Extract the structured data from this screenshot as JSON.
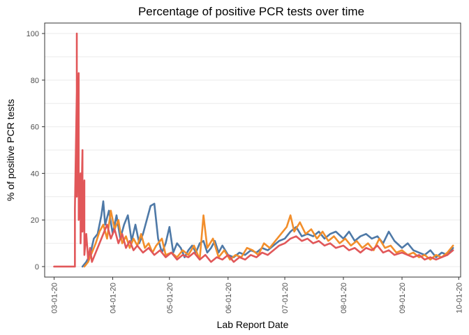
{
  "chart_data": {
    "type": "line",
    "title": "Percentage of positive PCR tests over time",
    "xlabel": "Lab Report Date",
    "ylabel": "% of positive PCR tests",
    "x_ticks": [
      "03-01-20",
      "04-01-20",
      "05-01-20",
      "06-01-20",
      "07-01-20",
      "08-01-20",
      "09-01-20",
      "10-01-20"
    ],
    "y_ticks": [
      0,
      20,
      40,
      60,
      80,
      100
    ],
    "xlim": [
      "2020-02-25",
      "2020-10-02"
    ],
    "ylim": [
      -4.5,
      104.5
    ],
    "grid": "horizontal",
    "legend": "none",
    "series": [
      {
        "color": "#4e79a7",
        "points": [
          [
            "2020-03-16",
            0
          ],
          [
            "2020-03-18",
            2
          ],
          [
            "2020-03-20",
            5
          ],
          [
            "2020-03-22",
            12
          ],
          [
            "2020-03-24",
            14
          ],
          [
            "2020-03-26",
            22
          ],
          [
            "2020-03-27",
            28
          ],
          [
            "2020-03-28",
            18
          ],
          [
            "2020-03-30",
            24
          ],
          [
            "2020-04-01",
            14
          ],
          [
            "2020-04-03",
            22
          ],
          [
            "2020-04-05",
            12
          ],
          [
            "2020-04-07",
            18
          ],
          [
            "2020-04-09",
            22
          ],
          [
            "2020-04-11",
            11
          ],
          [
            "2020-04-13",
            18
          ],
          [
            "2020-04-15",
            10
          ],
          [
            "2020-04-17",
            14
          ],
          [
            "2020-04-19",
            20
          ],
          [
            "2020-04-21",
            26
          ],
          [
            "2020-04-23",
            27
          ],
          [
            "2020-04-25",
            12
          ],
          [
            "2020-04-27",
            6
          ],
          [
            "2020-04-29",
            10
          ],
          [
            "2020-05-01",
            17
          ],
          [
            "2020-05-03",
            6
          ],
          [
            "2020-05-05",
            10
          ],
          [
            "2020-05-07",
            8
          ],
          [
            "2020-05-09",
            4
          ],
          [
            "2020-05-11",
            7
          ],
          [
            "2020-05-13",
            9
          ],
          [
            "2020-05-15",
            6
          ],
          [
            "2020-05-17",
            10
          ],
          [
            "2020-05-19",
            11
          ],
          [
            "2020-05-21",
            6
          ],
          [
            "2020-05-23",
            8
          ],
          [
            "2020-05-25",
            11
          ],
          [
            "2020-05-27",
            6
          ],
          [
            "2020-05-29",
            9
          ],
          [
            "2020-06-01",
            5
          ],
          [
            "2020-06-04",
            4
          ],
          [
            "2020-06-07",
            6
          ],
          [
            "2020-06-10",
            5
          ],
          [
            "2020-06-13",
            7
          ],
          [
            "2020-06-16",
            6
          ],
          [
            "2020-06-19",
            8
          ],
          [
            "2020-06-22",
            7
          ],
          [
            "2020-06-25",
            9
          ],
          [
            "2020-06-28",
            11
          ],
          [
            "2020-07-01",
            12
          ],
          [
            "2020-07-04",
            15
          ],
          [
            "2020-07-07",
            17
          ],
          [
            "2020-07-10",
            13
          ],
          [
            "2020-07-13",
            14
          ],
          [
            "2020-07-16",
            13
          ],
          [
            "2020-07-19",
            15
          ],
          [
            "2020-07-22",
            12
          ],
          [
            "2020-07-25",
            14
          ],
          [
            "2020-07-28",
            15
          ],
          [
            "2020-08-01",
            12
          ],
          [
            "2020-08-04",
            15
          ],
          [
            "2020-08-07",
            11
          ],
          [
            "2020-08-10",
            13
          ],
          [
            "2020-08-13",
            14
          ],
          [
            "2020-08-16",
            12
          ],
          [
            "2020-08-19",
            13
          ],
          [
            "2020-08-22",
            10
          ],
          [
            "2020-08-25",
            15
          ],
          [
            "2020-08-28",
            11
          ],
          [
            "2020-09-01",
            8
          ],
          [
            "2020-09-04",
            10
          ],
          [
            "2020-09-07",
            7
          ],
          [
            "2020-09-10",
            6
          ],
          [
            "2020-09-13",
            5
          ],
          [
            "2020-09-16",
            7
          ],
          [
            "2020-09-19",
            4
          ],
          [
            "2020-09-22",
            6
          ],
          [
            "2020-09-25",
            5
          ],
          [
            "2020-09-28",
            8
          ]
        ]
      },
      {
        "color": "#f28e2b",
        "points": [
          [
            "2020-03-17",
            0
          ],
          [
            "2020-03-19",
            2
          ],
          [
            "2020-03-21",
            6
          ],
          [
            "2020-03-23",
            10
          ],
          [
            "2020-03-25",
            15
          ],
          [
            "2020-03-27",
            18
          ],
          [
            "2020-03-29",
            12
          ],
          [
            "2020-03-31",
            24
          ],
          [
            "2020-04-02",
            16
          ],
          [
            "2020-04-04",
            20
          ],
          [
            "2020-04-06",
            10
          ],
          [
            "2020-04-08",
            13
          ],
          [
            "2020-04-10",
            8
          ],
          [
            "2020-04-12",
            12
          ],
          [
            "2020-04-14",
            9
          ],
          [
            "2020-04-16",
            14
          ],
          [
            "2020-04-18",
            8
          ],
          [
            "2020-04-20",
            10
          ],
          [
            "2020-04-22",
            6
          ],
          [
            "2020-04-24",
            9
          ],
          [
            "2020-04-27",
            12
          ],
          [
            "2020-04-29",
            5
          ],
          [
            "2020-05-02",
            6
          ],
          [
            "2020-05-05",
            4
          ],
          [
            "2020-05-08",
            7
          ],
          [
            "2020-05-11",
            5
          ],
          [
            "2020-05-14",
            9
          ],
          [
            "2020-05-17",
            3
          ],
          [
            "2020-05-19",
            22
          ],
          [
            "2020-05-21",
            8
          ],
          [
            "2020-05-24",
            12
          ],
          [
            "2020-05-27",
            4
          ],
          [
            "2020-05-30",
            7
          ],
          [
            "2020-06-02",
            3
          ],
          [
            "2020-06-05",
            5
          ],
          [
            "2020-06-08",
            4
          ],
          [
            "2020-06-11",
            8
          ],
          [
            "2020-06-14",
            7
          ],
          [
            "2020-06-17",
            5
          ],
          [
            "2020-06-20",
            10
          ],
          [
            "2020-06-23",
            8
          ],
          [
            "2020-06-26",
            11
          ],
          [
            "2020-06-29",
            14
          ],
          [
            "2020-07-02",
            17
          ],
          [
            "2020-07-04",
            22
          ],
          [
            "2020-07-06",
            15
          ],
          [
            "2020-07-09",
            19
          ],
          [
            "2020-07-12",
            14
          ],
          [
            "2020-07-15",
            16
          ],
          [
            "2020-07-18",
            12
          ],
          [
            "2020-07-21",
            15
          ],
          [
            "2020-07-24",
            11
          ],
          [
            "2020-07-27",
            13
          ],
          [
            "2020-07-30",
            10
          ],
          [
            "2020-08-02",
            12
          ],
          [
            "2020-08-05",
            9
          ],
          [
            "2020-08-08",
            11
          ],
          [
            "2020-08-11",
            8
          ],
          [
            "2020-08-14",
            10
          ],
          [
            "2020-08-17",
            7
          ],
          [
            "2020-08-20",
            12
          ],
          [
            "2020-08-23",
            8
          ],
          [
            "2020-08-26",
            9
          ],
          [
            "2020-08-29",
            6
          ],
          [
            "2020-09-01",
            7
          ],
          [
            "2020-09-04",
            5
          ],
          [
            "2020-09-07",
            6
          ],
          [
            "2020-09-10",
            4
          ],
          [
            "2020-09-13",
            5
          ],
          [
            "2020-09-16",
            3
          ],
          [
            "2020-09-19",
            5
          ],
          [
            "2020-09-22",
            4
          ],
          [
            "2020-09-25",
            6
          ],
          [
            "2020-09-28",
            9
          ]
        ]
      },
      {
        "color": "#e15759",
        "points": [
          [
            "2020-03-01",
            0
          ],
          [
            "2020-03-05",
            0
          ],
          [
            "2020-03-09",
            0
          ],
          [
            "2020-03-12",
            0
          ],
          [
            "2020-03-12",
            25
          ],
          [
            "2020-03-13",
            75
          ],
          [
            "2020-03-13",
            100
          ],
          [
            "2020-03-13",
            30
          ],
          [
            "2020-03-14",
            83
          ],
          [
            "2020-03-14",
            20
          ],
          [
            "2020-03-15",
            40
          ],
          [
            "2020-03-15",
            10
          ],
          [
            "2020-03-16",
            50
          ],
          [
            "2020-03-16",
            15
          ],
          [
            "2020-03-17",
            37
          ],
          [
            "2020-03-17",
            5
          ],
          [
            "2020-03-18",
            14
          ],
          [
            "2020-03-19",
            3
          ],
          [
            "2020-03-20",
            8
          ],
          [
            "2020-03-21",
            2
          ],
          [
            "2020-03-23",
            6
          ],
          [
            "2020-03-25",
            10
          ],
          [
            "2020-03-27",
            14
          ],
          [
            "2020-03-29",
            18
          ],
          [
            "2020-03-31",
            12
          ],
          [
            "2020-04-02",
            16
          ],
          [
            "2020-04-04",
            10
          ],
          [
            "2020-04-06",
            14
          ],
          [
            "2020-04-08",
            8
          ],
          [
            "2020-04-10",
            11
          ],
          [
            "2020-04-12",
            7
          ],
          [
            "2020-04-14",
            9
          ],
          [
            "2020-04-17",
            6
          ],
          [
            "2020-04-20",
            8
          ],
          [
            "2020-04-23",
            5
          ],
          [
            "2020-04-26",
            7
          ],
          [
            "2020-04-29",
            4
          ],
          [
            "2020-05-02",
            6
          ],
          [
            "2020-05-05",
            3
          ],
          [
            "2020-05-08",
            5
          ],
          [
            "2020-05-11",
            4
          ],
          [
            "2020-05-14",
            6
          ],
          [
            "2020-05-17",
            3
          ],
          [
            "2020-05-20",
            5
          ],
          [
            "2020-05-23",
            2
          ],
          [
            "2020-05-26",
            4
          ],
          [
            "2020-05-29",
            3
          ],
          [
            "2020-06-01",
            5
          ],
          [
            "2020-06-04",
            2
          ],
          [
            "2020-06-07",
            4
          ],
          [
            "2020-06-10",
            3
          ],
          [
            "2020-06-13",
            5
          ],
          [
            "2020-06-16",
            4
          ],
          [
            "2020-06-19",
            6
          ],
          [
            "2020-06-22",
            5
          ],
          [
            "2020-06-25",
            7
          ],
          [
            "2020-06-28",
            9
          ],
          [
            "2020-07-01",
            10
          ],
          [
            "2020-07-04",
            12
          ],
          [
            "2020-07-07",
            13
          ],
          [
            "2020-07-10",
            11
          ],
          [
            "2020-07-13",
            12
          ],
          [
            "2020-07-16",
            10
          ],
          [
            "2020-07-19",
            11
          ],
          [
            "2020-07-22",
            9
          ],
          [
            "2020-07-25",
            10
          ],
          [
            "2020-07-28",
            8
          ],
          [
            "2020-08-01",
            9
          ],
          [
            "2020-08-04",
            7
          ],
          [
            "2020-08-07",
            8
          ],
          [
            "2020-08-10",
            6
          ],
          [
            "2020-08-13",
            8
          ],
          [
            "2020-08-16",
            7
          ],
          [
            "2020-08-19",
            9
          ],
          [
            "2020-08-22",
            6
          ],
          [
            "2020-08-25",
            7
          ],
          [
            "2020-08-28",
            5
          ],
          [
            "2020-09-01",
            6
          ],
          [
            "2020-09-04",
            5
          ],
          [
            "2020-09-07",
            4
          ],
          [
            "2020-09-10",
            5
          ],
          [
            "2020-09-13",
            3
          ],
          [
            "2020-09-16",
            4
          ],
          [
            "2020-09-19",
            3
          ],
          [
            "2020-09-22",
            4
          ],
          [
            "2020-09-25",
            5
          ],
          [
            "2020-09-28",
            7
          ]
        ]
      }
    ]
  }
}
